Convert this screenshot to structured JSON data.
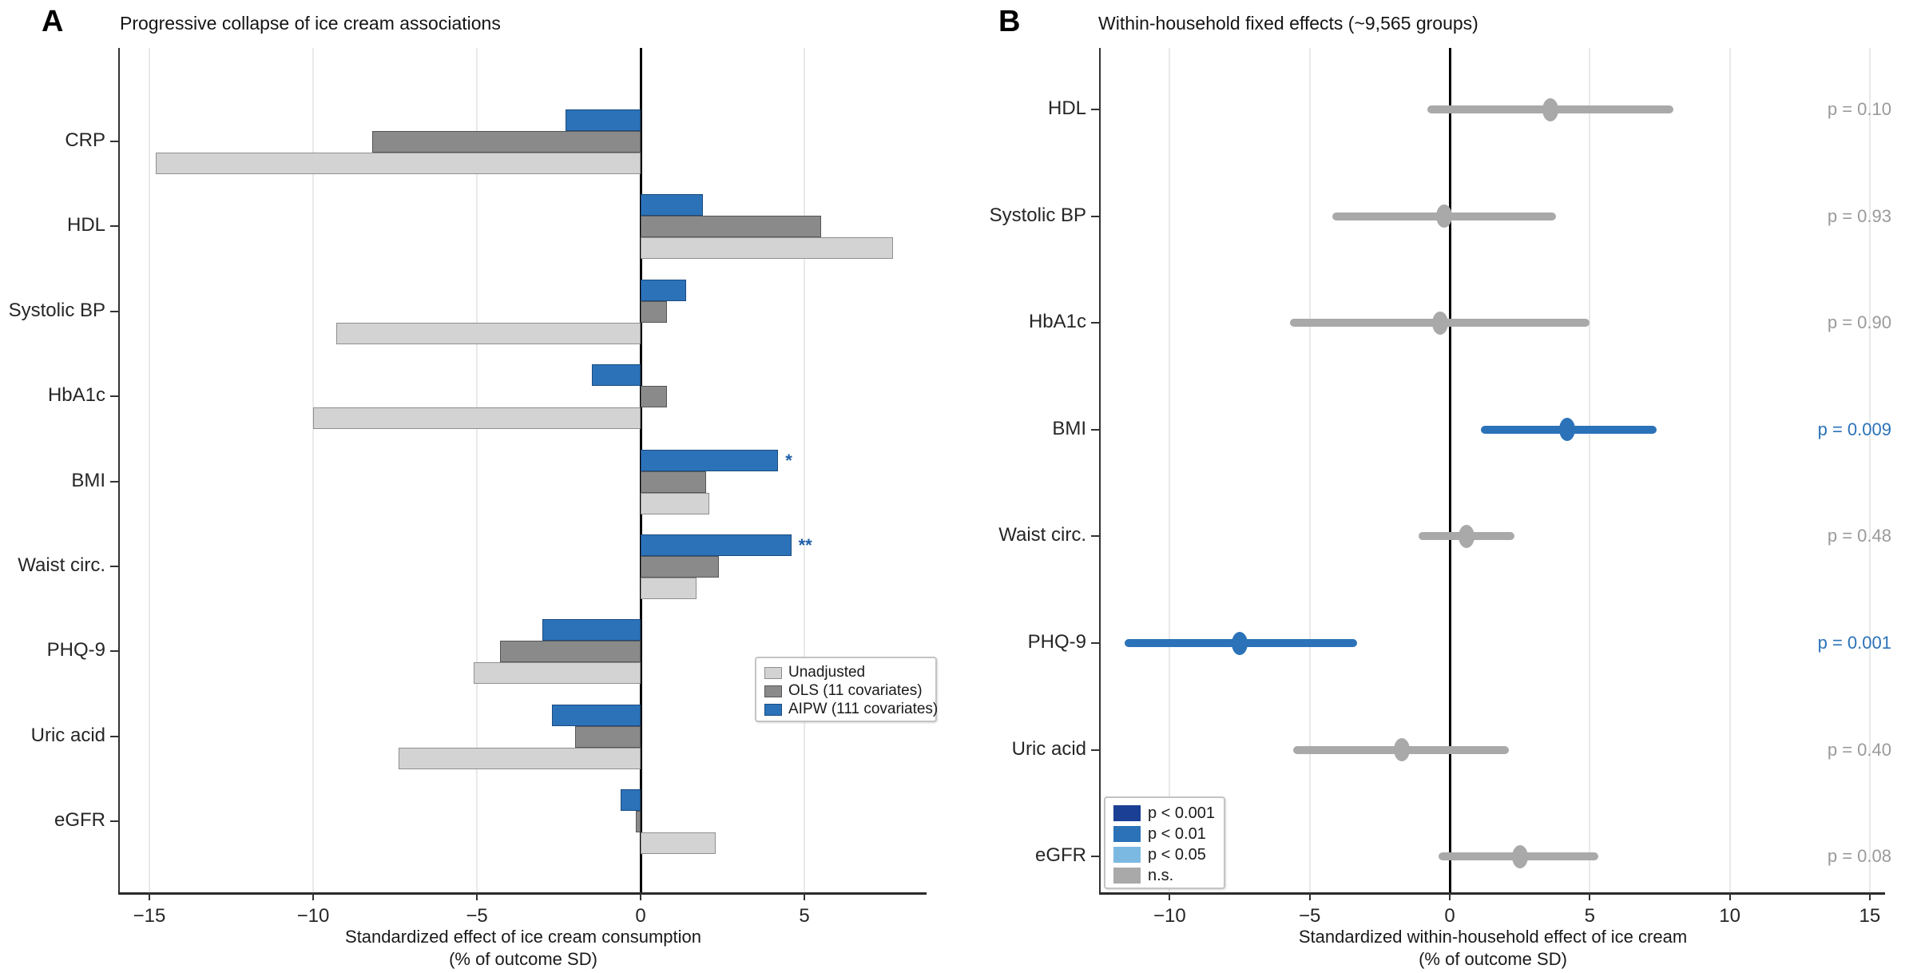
{
  "chart_data": [
    {
      "type": "bar",
      "orientation": "horizontal",
      "panel_label": "A",
      "title": "Progressive collapse of ice cream associations",
      "xlabel_line1": "Standardized effect of ice cream consumption",
      "xlabel_line2": "(% of outcome SD)",
      "categories": [
        "CRP",
        "HDL",
        "Systolic BP",
        "HbA1c",
        "BMI",
        "Waist circ.",
        "PHQ-9",
        "Uric acid",
        "eGFR"
      ],
      "series": [
        {
          "name": "Unadjusted",
          "color": "#d3d3d3",
          "border": "#8f8f8f",
          "values": [
            -14.8,
            7.7,
            -9.3,
            -10.0,
            2.1,
            1.7,
            -5.1,
            -7.4,
            2.3
          ]
        },
        {
          "name": "OLS (11 covariates)",
          "color": "#8a8a8a",
          "border": "#565656",
          "values": [
            -8.2,
            5.5,
            0.8,
            0.8,
            2.0,
            2.4,
            -4.3,
            -2.0,
            -0.15
          ]
        },
        {
          "name": "AIPW (111 covariates)",
          "color": "#2b72b8",
          "border": "#1c4c80",
          "values": [
            -2.3,
            1.9,
            1.4,
            -1.5,
            4.2,
            4.6,
            -3.0,
            -2.7,
            -0.6
          ]
        }
      ],
      "annotations": [
        {
          "category": "BMI",
          "series": "AIPW (111 covariates)",
          "text": "*"
        },
        {
          "category": "Waist circ.",
          "series": "AIPW (111 covariates)",
          "text": "**"
        }
      ],
      "xticks": [
        {
          "value": -15,
          "label": "−15"
        },
        {
          "value": -10,
          "label": "−10"
        },
        {
          "value": -5,
          "label": "−5"
        },
        {
          "value": 0,
          "label": "0"
        },
        {
          "value": 5,
          "label": "5"
        }
      ],
      "xlim": [
        -15.9,
        8.7
      ],
      "grid": "vertical-light",
      "legend_position": "middle-right"
    },
    {
      "type": "scatter",
      "subtype": "forest-plot",
      "panel_label": "B",
      "title": "Within-household fixed effects (~9,565 groups)",
      "xlabel_line1": "Standardized within-household effect of ice cream",
      "xlabel_line2": "(% of outcome SD)",
      "categories": [
        "HDL",
        "Systolic BP",
        "HbA1c",
        "BMI",
        "Waist circ.",
        "PHQ-9",
        "Uric acid",
        "eGFR"
      ],
      "points": [
        {
          "category": "HDL",
          "estimate": 3.6,
          "ci_low": -0.8,
          "ci_high": 8.0,
          "p_label": "p = 0.10",
          "significant": false
        },
        {
          "category": "Systolic BP",
          "estimate": -0.2,
          "ci_low": -4.2,
          "ci_high": 3.8,
          "p_label": "p = 0.93",
          "significant": false
        },
        {
          "category": "HbA1c",
          "estimate": -0.35,
          "ci_low": -5.7,
          "ci_high": 5.0,
          "p_label": "p = 0.90",
          "significant": false
        },
        {
          "category": "BMI",
          "estimate": 4.2,
          "ci_low": 1.1,
          "ci_high": 7.4,
          "p_label": "p = 0.009",
          "significant": true
        },
        {
          "category": "Waist circ.",
          "estimate": 0.6,
          "ci_low": -1.1,
          "ci_high": 2.3,
          "p_label": "p = 0.48",
          "significant": false
        },
        {
          "category": "PHQ-9",
          "estimate": -7.5,
          "ci_low": -11.6,
          "ci_high": -3.3,
          "p_label": "p = 0.001",
          "significant": true
        },
        {
          "category": "Uric acid",
          "estimate": -1.7,
          "ci_low": -5.6,
          "ci_high": 2.1,
          "p_label": "p = 0.40",
          "significant": false
        },
        {
          "category": "eGFR",
          "estimate": 2.5,
          "ci_low": -0.4,
          "ci_high": 5.3,
          "p_label": "p = 0.08",
          "significant": false
        }
      ],
      "colors": {
        "significant": "#2b72b8",
        "ns": "#a9a9a9",
        "p_text_significant": "#2b72b8",
        "p_text_ns": "#9a9a9a"
      },
      "legend": [
        {
          "label": "p < 0.001",
          "color": "#1a3f94"
        },
        {
          "label": "p < 0.01",
          "color": "#2b72b8"
        },
        {
          "label": "p < 0.05",
          "color": "#7cb9e2"
        },
        {
          "label": "n.s.",
          "color": "#a9a9a9"
        }
      ],
      "xticks": [
        {
          "value": -10,
          "label": "−10"
        },
        {
          "value": -5,
          "label": "−5"
        },
        {
          "value": 0,
          "label": "0"
        },
        {
          "value": 5,
          "label": "5"
        },
        {
          "value": 10,
          "label": "10"
        },
        {
          "value": 15,
          "label": "15"
        }
      ],
      "xlim": [
        -12.5,
        15.5
      ],
      "grid": "vertical-light",
      "legend_position": "bottom-left"
    }
  ]
}
